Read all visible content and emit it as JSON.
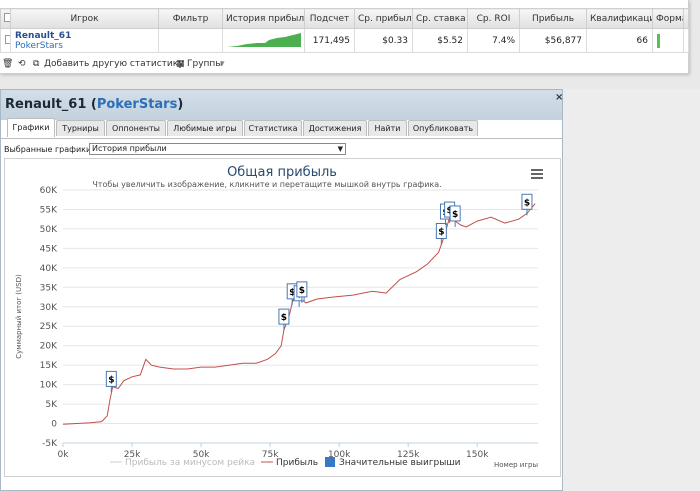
{
  "stats_table": {
    "columns": [
      "Игрок",
      "Фильтр",
      "История прибыли",
      "Подсчет",
      "Ср. прибыль",
      "Ср. ставка",
      "Ср. ROI",
      "Прибыль",
      "Квалификация",
      "Форма"
    ],
    "row": {
      "player_name": "Renault_61",
      "site": "PokerStars",
      "filter": "",
      "count": "171,495",
      "avg_profit": "$0.33",
      "avg_stake": "$5.52",
      "avg_roi": "7.4%",
      "profit": "$56,877",
      "qualification": "66",
      "remove": "x"
    }
  },
  "toolbar": {
    "add_stat": "Добавить другую статистику",
    "groups": "Группы"
  },
  "dialog": {
    "title_player": "Renault_61",
    "title_site": "PokerStars",
    "close": "×",
    "tabs": [
      "Графики",
      "Турниры",
      "Оппоненты",
      "Любимые игры",
      "Статистика",
      "Достижения",
      "Найти",
      "Опубликовать"
    ],
    "selected_label": "Выбранные графики:",
    "selected_value": "История прибыли"
  },
  "chart_data": {
    "type": "line",
    "title": "Общая прибыль",
    "subtitle": "Чтобы увеличить изображение, кликните и перетащите мышкой внутрь графика.",
    "ylabel": "Суммарный итог (USD)",
    "xlabel": "Номер игры",
    "xlim": [
      0,
      172000
    ],
    "ylim": [
      -5000,
      60000
    ],
    "x_ticks": [
      "0k",
      "25k",
      "50k",
      "75k",
      "100k",
      "125k",
      "150k"
    ],
    "y_ticks": [
      "-5K",
      "0",
      "5K",
      "10K",
      "15K",
      "20K",
      "25K",
      "30K",
      "35K",
      "40K",
      "45K",
      "50K",
      "55K",
      "60K"
    ],
    "series": [
      {
        "name": "Прибыль",
        "color": "#c0504d",
        "points": [
          [
            0,
            -200
          ],
          [
            5000,
            0
          ],
          [
            10000,
            200
          ],
          [
            14000,
            500
          ],
          [
            16000,
            2000
          ],
          [
            17000,
            6000
          ],
          [
            18000,
            9500
          ],
          [
            20000,
            9000
          ],
          [
            22000,
            11000
          ],
          [
            25000,
            12000
          ],
          [
            28000,
            12500
          ],
          [
            30000,
            16500
          ],
          [
            32000,
            15000
          ],
          [
            35000,
            14500
          ],
          [
            40000,
            14000
          ],
          [
            45000,
            14000
          ],
          [
            50000,
            14500
          ],
          [
            55000,
            14500
          ],
          [
            60000,
            15000
          ],
          [
            65000,
            15500
          ],
          [
            70000,
            15500
          ],
          [
            74000,
            16500
          ],
          [
            77000,
            18000
          ],
          [
            79000,
            20000
          ],
          [
            80000,
            24000
          ],
          [
            82000,
            28000
          ],
          [
            83000,
            31000
          ],
          [
            84000,
            33000
          ],
          [
            86000,
            32000
          ],
          [
            88000,
            31000
          ],
          [
            92000,
            32000
          ],
          [
            98000,
            32500
          ],
          [
            105000,
            33000
          ],
          [
            112000,
            34000
          ],
          [
            117000,
            33500
          ],
          [
            122000,
            37000
          ],
          [
            128000,
            39000
          ],
          [
            132000,
            41000
          ],
          [
            136000,
            44000
          ],
          [
            138000,
            48000
          ],
          [
            140000,
            53000
          ],
          [
            142000,
            52000
          ],
          [
            144000,
            51000
          ],
          [
            146000,
            50500
          ],
          [
            150000,
            52000
          ],
          [
            155000,
            53000
          ],
          [
            160000,
            51500
          ],
          [
            165000,
            52500
          ],
          [
            168000,
            54000
          ],
          [
            171000,
            56500
          ]
        ]
      },
      {
        "name": "Прибыль за минусом рейка",
        "color": "#cccccc",
        "points": []
      }
    ],
    "big_wins": [
      [
        17500,
        8000
      ],
      [
        80000,
        24000
      ],
      [
        83000,
        30500
      ],
      [
        85500,
        30000
      ],
      [
        86500,
        31000
      ],
      [
        137000,
        46000
      ],
      [
        138500,
        51000
      ],
      [
        140000,
        51500
      ],
      [
        142000,
        50500
      ],
      [
        168000,
        53500
      ]
    ],
    "legend": [
      "Прибыль за минусом рейка",
      "Прибыль",
      "Значительные выигрыши"
    ]
  }
}
